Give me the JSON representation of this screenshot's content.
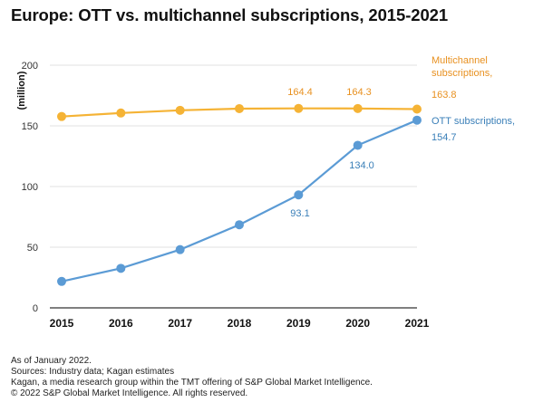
{
  "title": "Europe: OTT vs. multichannel subscriptions, 2015-2021",
  "chart_data": {
    "type": "line",
    "x": [
      "2015",
      "2016",
      "2017",
      "2018",
      "2019",
      "2020",
      "2021"
    ],
    "ylabel": "(million)",
    "ylim": [
      0,
      200
    ],
    "yticks": [
      "0",
      "50",
      "100",
      "150",
      "200"
    ],
    "grid": true,
    "series": [
      {
        "name": "Multichannel subscriptions,",
        "color": "#f5b335",
        "values": [
          157.7,
          160.6,
          162.8,
          164.2,
          164.4,
          164.3,
          163.8
        ]
      },
      {
        "name": "OTT subscriptions,",
        "color": "#5b9bd5",
        "values": [
          21.8,
          32.6,
          48.0,
          68.5,
          93.1,
          134.0,
          154.7
        ]
      }
    ],
    "data_labels": {
      "multichannel": [
        "164.4",
        "164.3"
      ],
      "multichannel_end": "163.8",
      "ott": [
        "93.1",
        "134.0"
      ],
      "ott_end": "154.7"
    },
    "legend": {
      "multichannel_line1": "Multichannel",
      "multichannel_line2": "subscriptions,",
      "ott": "OTT subscriptions,"
    }
  },
  "footer": [
    "As of January 2022.",
    "Sources: Industry data; Kagan estimates",
    "Kagan, a media research group within the TMT offering of S&P Global Market Intelligence.",
    "© 2022 S&P Global Market Intelligence. All rights reserved."
  ]
}
